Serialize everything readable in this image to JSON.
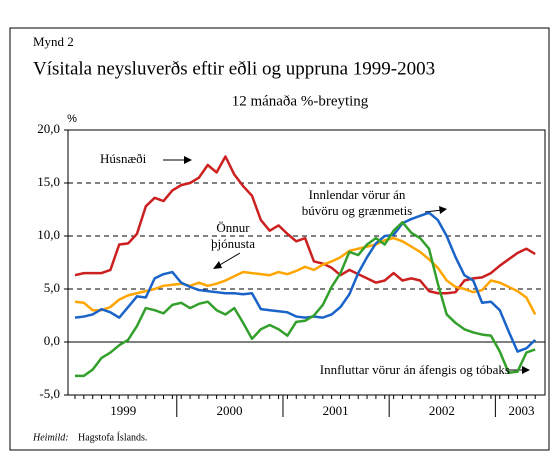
{
  "chart_data": {
    "type": "line",
    "label": "Mynd 2",
    "title": "Vísitala neysluverðs eftir eðli og uppruna 1999-2003",
    "subtitle": "12 mánaða %-breyting",
    "y_label": "%",
    "source_label": "Heimild:",
    "source": "Hagstofa Íslands.",
    "categories": [
      null,
      null,
      null,
      null,
      null,
      "1999",
      null,
      null,
      null,
      null,
      null,
      null,
      null,
      null,
      null,
      null,
      null,
      "2000",
      null,
      null,
      null,
      null,
      null,
      null,
      null,
      null,
      null,
      null,
      null,
      "2001",
      null,
      null,
      null,
      null,
      null,
      null,
      null,
      null,
      null,
      null,
      null,
      "2002",
      null,
      null,
      null,
      null,
      null,
      null,
      null,
      null,
      "2003",
      null,
      null
    ],
    "ylim": [
      -5,
      20
    ],
    "yticks": [
      {
        "value": -5,
        "label": "-5,0"
      },
      {
        "value": 0,
        "label": "0,0"
      },
      {
        "value": 5,
        "label": "5,0"
      },
      {
        "value": 10,
        "label": "10,0"
      },
      {
        "value": 15,
        "label": "15,0"
      },
      {
        "value": 20,
        "label": "20,0"
      }
    ],
    "grid": true,
    "series": [
      {
        "name": "Húsnæði",
        "color": "#cc2020",
        "values": [
          6.3,
          6.5,
          6.5,
          6.5,
          6.8,
          9.2,
          9.3,
          10.2,
          12.8,
          13.6,
          13.3,
          14.3,
          14.8,
          15.0,
          15.5,
          16.7,
          16.0,
          17.5,
          15.8,
          14.7,
          13.8,
          11.5,
          10.5,
          11.0,
          10.2,
          9.5,
          9.8,
          7.6,
          7.4,
          7.0,
          6.3,
          6.8,
          6.4,
          6.0,
          5.6,
          5.8,
          6.5,
          5.8,
          6.0,
          5.8,
          4.8,
          4.6,
          4.6,
          4.7,
          5.8,
          6.0,
          6.1,
          6.5,
          7.2,
          7.8,
          8.4,
          8.8,
          8.3
        ]
      },
      {
        "name": "Önnur þjónusta",
        "color": "#ffa500",
        "values": [
          3.8,
          3.7,
          3.0,
          3.0,
          3.3,
          4.0,
          4.4,
          4.6,
          4.8,
          5.0,
          5.3,
          5.4,
          5.5,
          5.3,
          5.6,
          5.3,
          5.5,
          5.8,
          6.2,
          6.6,
          6.5,
          6.4,
          6.3,
          6.6,
          6.4,
          6.7,
          7.1,
          6.8,
          7.3,
          7.6,
          8.0,
          8.6,
          8.8,
          9.0,
          9.2,
          9.6,
          9.8,
          9.5,
          9.0,
          8.5,
          7.8,
          7.0,
          5.8,
          5.2,
          5.0,
          4.7,
          4.9,
          5.8,
          5.6,
          5.2,
          4.8,
          4.2,
          2.6
        ]
      },
      {
        "name": "Innlendar vörur án búvöru og grænmetis",
        "color": "#1a63c8",
        "values": [
          2.3,
          2.4,
          2.6,
          3.1,
          2.8,
          2.3,
          3.3,
          4.3,
          4.2,
          6.0,
          6.4,
          6.6,
          5.6,
          5.2,
          4.9,
          4.8,
          4.7,
          4.6,
          4.6,
          4.5,
          4.6,
          3.1,
          3.0,
          2.9,
          2.8,
          2.4,
          2.3,
          2.4,
          2.3,
          2.6,
          3.3,
          4.5,
          6.5,
          8.0,
          9.3,
          10.0,
          10.1,
          11.2,
          11.6,
          11.9,
          12.2,
          11.5,
          10.0,
          8.0,
          6.3,
          5.8,
          3.7,
          3.8,
          3.0,
          1.0,
          -0.9,
          -0.6,
          0.2
        ]
      },
      {
        "name": "Innfluttar vörur án áfengis og tóbaks",
        "color": "#33a02c",
        "values": [
          -3.2,
          -3.2,
          -2.6,
          -1.5,
          -1.0,
          -0.3,
          0.2,
          1.5,
          3.2,
          3.0,
          2.7,
          3.5,
          3.7,
          3.2,
          3.6,
          3.8,
          3.0,
          2.6,
          3.2,
          1.8,
          0.3,
          1.2,
          1.6,
          1.2,
          0.6,
          1.9,
          2.0,
          2.5,
          3.5,
          5.2,
          6.5,
          8.5,
          8.2,
          9.2,
          9.8,
          9.2,
          10.5,
          11.3,
          10.3,
          9.8,
          8.8,
          5.5,
          2.6,
          1.8,
          1.2,
          0.9,
          0.7,
          0.6,
          -0.9,
          -2.9,
          -2.8,
          -1.0,
          -0.7
        ]
      }
    ]
  }
}
